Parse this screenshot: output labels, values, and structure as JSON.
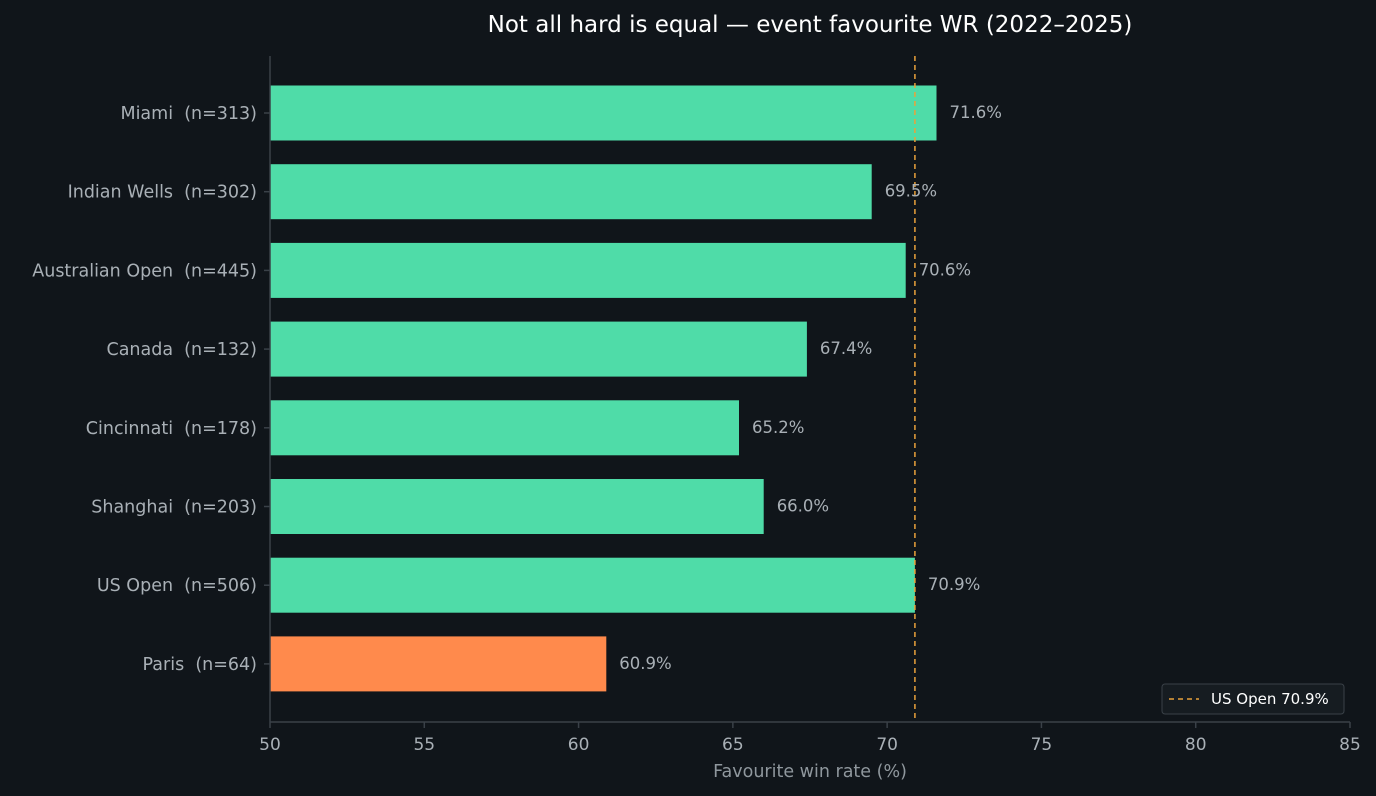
{
  "chart_data": {
    "type": "bar",
    "orientation": "horizontal",
    "title": "Not all hard is equal — event favourite WR (2022–2025)",
    "xlabel": "Favourite win rate (%)",
    "ylabel": "",
    "xlim": [
      50,
      85
    ],
    "xticks": [
      50,
      55,
      60,
      65,
      70,
      75,
      80,
      85
    ],
    "grid": false,
    "categories": [
      "Miami  (n=313)",
      "Indian Wells  (n=302)",
      "Australian Open  (n=445)",
      "Canada  (n=132)",
      "Cincinnati  (n=178)",
      "Shanghai  (n=203)",
      "US Open  (n=506)",
      "Paris  (n=64)"
    ],
    "values": [
      71.6,
      69.5,
      70.6,
      67.4,
      65.2,
      66.0,
      70.9,
      60.9
    ],
    "value_labels": [
      "71.6%",
      "69.5%",
      "70.6%",
      "67.4%",
      "65.2%",
      "66.0%",
      "70.9%",
      "60.9%"
    ],
    "bar_colors": [
      "#4fdca8",
      "#4fdca8",
      "#4fdca8",
      "#4fdca8",
      "#4fdca8",
      "#4fdca8",
      "#4fdca8",
      "#ff8a4c"
    ],
    "reference_line": {
      "value": 70.9,
      "label": "US Open 70.9%",
      "color": "#e9a23b",
      "style": "dashed"
    },
    "legend": {
      "placement": "bottom-right",
      "entries": [
        "US Open 70.9%"
      ]
    },
    "colors": {
      "background": "#10151a",
      "axis": "#3a4148",
      "text": "#a9b0b6",
      "title": "#ffffff"
    }
  }
}
